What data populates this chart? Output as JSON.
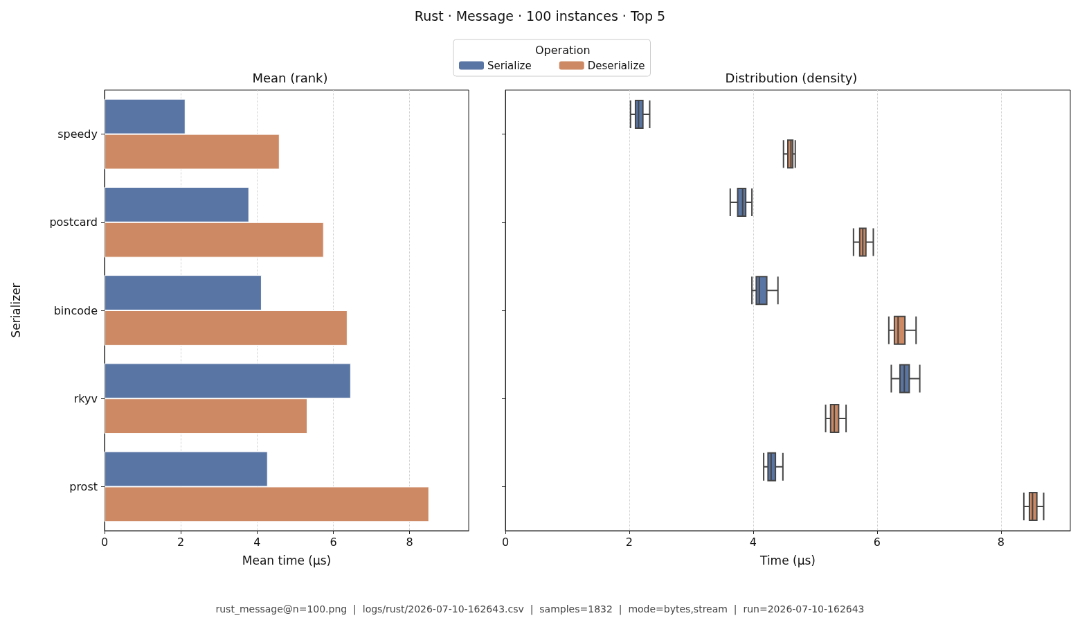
{
  "chart_data": [
    {
      "type": "bar",
      "orientation": "horizontal",
      "title": "Rust · Message · 100 instances · Top 5",
      "subtitle": "Mean (rank)",
      "xlabel": "Mean time (µs)",
      "ylabel": "Serializer",
      "categories": [
        "speedy",
        "postcard",
        "bincode",
        "rkyv",
        "prost"
      ],
      "series": [
        {
          "color": "#5975a4",
          "values": [
            2.12,
            3.79,
            4.12,
            6.46,
            4.28
          ]
        },
        {
          "color": "#cc8963",
          "values": [
            4.59,
            5.75,
            6.37,
            5.32,
            8.51
          ]
        }
      ],
      "xlim": [
        0,
        9.55
      ],
      "xticks": [
        0,
        2,
        4,
        6,
        8
      ],
      "grid": "x",
      "annotations": [
        "rust_message@n=100.png  |  logs/rust/2026-07-10-162643.csv  |  samples=1832  |  mode=bytes,stream  |  run=2026-07-10-162643"
      ]
    },
    {
      "type": "box",
      "orientation": "horizontal",
      "subtitle": "Distribution (density)",
      "xlabel": "Time (µs)",
      "legend_title": "Operation",
      "legend": "top left",
      "categories": [
        null,
        null,
        null,
        null,
        null
      ],
      "series": [
        {
          "name": "Serialize",
          "color": "#5975a4",
          "boxes": [
            {
              "low": 2.02,
              "q1": 2.1,
              "median": 2.15,
              "q3": 2.22,
              "high": 2.33
            },
            {
              "low": 3.63,
              "q1": 3.75,
              "median": 3.83,
              "q3": 3.88,
              "high": 3.98
            },
            {
              "low": 3.98,
              "q1": 4.05,
              "median": 4.1,
              "q3": 4.22,
              "high": 4.4
            },
            {
              "low": 6.23,
              "q1": 6.37,
              "median": 6.44,
              "q3": 6.52,
              "high": 6.69
            },
            {
              "low": 4.17,
              "q1": 4.24,
              "median": 4.29,
              "q3": 4.36,
              "high": 4.48
            }
          ]
        },
        {
          "name": "Deserialize",
          "color": "#cc8963",
          "boxes": [
            {
              "low": 4.49,
              "q1": 4.56,
              "median": 4.61,
              "q3": 4.64,
              "high": 4.68
            },
            {
              "low": 5.62,
              "q1": 5.72,
              "median": 5.77,
              "q3": 5.82,
              "high": 5.94
            },
            {
              "low": 6.19,
              "q1": 6.28,
              "median": 6.34,
              "q3": 6.45,
              "high": 6.63
            },
            {
              "low": 5.17,
              "q1": 5.25,
              "median": 5.31,
              "q3": 5.38,
              "high": 5.5
            },
            {
              "low": 8.37,
              "q1": 8.46,
              "median": 8.51,
              "q3": 8.58,
              "high": 8.69
            }
          ]
        }
      ],
      "xlim": [
        0,
        9.12
      ],
      "xticks": [
        0,
        2,
        4,
        6,
        8
      ],
      "grid": "x",
      "tick_labels": "x"
    }
  ]
}
